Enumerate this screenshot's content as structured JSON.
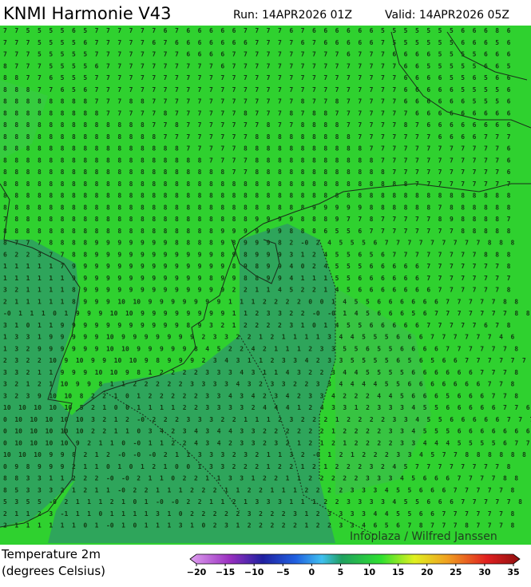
{
  "header": {
    "title": "KNMI Harmonie V43",
    "run": "Run: 14APR2026 01Z",
    "valid": "Valid: 14APR2026 05Z"
  },
  "map": {
    "rows": [
      "7 7 5 5 5 5 6 5 7 7 7 7 7 7 6 7 6 6 6 6 6 7 7 7 7 6 7 6 6 6 6 6 6 5 5 5 5 5 5 5 6 6 6 8 6",
      "7 7 7 5 5 5 5 6 7 7 7 7 7 6 7 6 6 6 6 6 6 6 7 7 7 7 6 7 6 6 6 6 6 7 5 5 5 5 5 5 6 6 6 5 6",
      "7 7 7 5 5 5 5 5 7 7 7 7 7 7 7 7 6 6 6 6 7 7 7 7 7 7 7 7 7 7 6 7 7 7 6 6 6 6 5 5 5 5 6 6 6",
      "8 7 7 7 5 5 5 5 6 7 7 7 7 7 7 7 7 7 7 6 7 7 7 7 7 7 7 7 7 7 7 7 7 7 7 6 6 5 5 5 5 5 6 6 5",
      "8 8 7 7 6 5 5 5 7 7 7 7 7 7 7 7 7 7 7 7 7 7 7 7 7 7 7 7 7 7 7 7 7 7 7 6 6 6 6 5 5 6 5 6 6",
      "8 8 8 7 7 6 5 6 7 7 7 7 7 7 7 7 7 7 7 7 7 7 7 7 7 7 7 7 7 7 7 7 7 7 7 6 6 6 6 6 5 5 5 5 6",
      "8 8 8 8 8 8 8 8 7 7 7 8 8 7 7 7 7 7 7 7 7 7 7 7 7 7 8 7 7 8 7 7 7 7 7 6 6 6 6 6 6 5 5 5 6",
      "8 8 8 8 8 8 8 8 8 7 7 7 7 7 8 7 7 7 7 7 7 8 7 7 7 8 7 8 8 7 7 7 7 7 7 7 6 6 6 6 6 6 6 6 6",
      "8 8 8 8 8 8 8 8 8 8 8 8 8 7 7 8 7 7 7 7 7 7 7 8 7 7 8 8 8 8 7 7 7 7 7 8 7 6 6 6 6 6 6 6 6",
      "8 8 8 8 8 8 8 8 8 8 8 8 8 8 7 7 7 7 7 7 7 7 8 8 8 8 8 8 8 8 8 7 7 7 7 7 7 7 6 6 6 6 7 7 7",
      "8 8 8 8 8 8 8 8 8 8 8 8 8 8 8 8 7 7 7 7 7 8 8 8 8 8 8 8 8 8 8 8 7 7 7 7 7 7 7 7 7 7 7 7 6",
      "8 8 8 8 8 8 8 8 8 8 8 8 8 8 8 8 8 8 7 7 7 7 8 8 8 8 8 8 8 8 8 8 8 7 7 7 7 7 7 7 7 7 7 7 6",
      "8 8 8 8 8 8 8 8 8 8 8 8 8 8 8 8 8 8 8 8 7 7 8 8 8 8 8 8 8 8 8 8 8 8 7 7 7 7 7 7 7 7 7 7 6",
      "8 8 8 8 8 8 8 8 8 8 8 8 8 8 8 8 8 8 8 8 8 8 8 8 8 8 8 8 8 8 8 8 8 8 8 8 7 7 7 7 7 7 7 7 7",
      "8 8 8 8 8 8 8 8 8 8 8 8 8 8 8 8 8 8 8 8 8 8 8 8 8 8 8 8 8 8 8 8 8 8 8 8 8 8 8 8 8 8 8 8 8",
      "8 8 8 8 8 8 8 8 8 8 8 8 8 8 8 8 8 8 8 8 8 8 8 8 8 8 8 9 9 9 9 9 8 8 8 8 8 8 7 8 8 8 8 8 8",
      "7 8 8 8 8 8 8 8 8 8 8 8 8 8 8 8 8 8 8 8 8 8 9 9 9 9 8 8 8 9 7 7 8 7 7 7 7 7 8 9 8 8 8 8 7",
      "8 8 8 8 8 8 8 8 8 8 8 8 8 8 8 8 8 8 8 9 9 9 9 9 9 8 8 8 6 5 5 6 7 7 7 7 7 7 7 7 8 8 8 8 8",
      "8 7 7 7 8 8 8 8 9 9 9 9 9 9 9 8 8 8 8 9 8 9 9 9 8 2 -0 2 4 5 5 5 6 7 7 7 7 7 7 7 7 7 8 8 8",
      "6 2 2 3 7 7 8 8 9 9 9 9 9 9 9 9 9 9 9 8 9 8 9 9 9 3 1 2 4 5 5 6 5 6 7 7 7 7 7 7 7 7 8 8 8",
      "1 1 1 1 1 7 9 9 9 9 9 9 9 9 9 9 9 9 9 9 8 9 8 9 9 4 0 2 4 5 5 5 6 6 6 6 6 7 7 7 7 7 7 7 8",
      "1 1 1 1 1 1 9 9 9 9 9 9 9 9 9 9 9 9 8 9 9 8 8 9 9 4 1 1 1 5 5 6 6 6 6 6 6 7 7 7 7 7 7 7 7",
      "3 2 1 1 1 1 8 9 9 9 9 9 9 9 9 9 9 9 9 9 2 2 1 1 4 5 2 2 1 4 5 6 6 6 6 6 6 6 7 7 7 7 7 7 8",
      "2 1 1 1 1 1 8 9 9 9 10 10 9 9 9 9 9 9 9 1 1 1 2 2 2 2 0 0 1 4 5 5 6 6 6 6 6 6 7 7 7 7 7 8 8",
      "-0 1 1 1 0 1 9 9 9 10 10 9 9 9 9 9 9 9 9 1 1 2 3 3 2 2 -0 -0 1 4 5 6 6 6 5 6 7 7 7 7 7 7 7 8 8",
      "3 1 0 1 1 9 9 9 9 9 9 9 9 9 9 9 8 9 3 2 1 2 2 2 2 3 1 0 1 4 5 5 6 6 6 6 6 7 7 7 7 7 6 7 8",
      "1 3 3 1 9 9 9 9 9 10 9 9 9 9 9 9 9 2 3 3 2 2 1 2 1 1 1 1 3 4 4 5 5 5 6 6 6 7 7 7 7 7 7 4 6",
      "1 3 2 9 9 9 9 9 9 10 10 9 9 9 9 9 8 4 5 2 2 4 2 1 1 1 2 3 3 5 5 6 5 5 6 6 6 6 7 7 7 7 7 7 8",
      "2 3 2 2 10 9 10 9 9 10 10 9 8 9 9 9 2 3 4 3 1 1 2 3 3 4 2 3 3 5 5 5 5 6 5 6 5 6 6 7 7 7 7 7 7",
      "3 3 2 1 1 9 9 9 10 10 9 8 1 2 2 2 2 3 3 3 4 3 1 1 4 3 2 2 3 4 4 5 5 5 5 6 6 6 6 6 6 7 7 7 8",
      "3 2 1 2 1 10 9 9 8 1 1 2 2 2 2 2 3 3 3 3 4 3 2 3 3 2 2 3 3 4 4 4 4 5 5 6 6 6 6 6 6 6 7 7 8",
      "3 2 3 9 10 10 8 2 2 1 0 1 2 2 2 2 2 3 3 4 3 4 2 3 4 2 3 3 4 2 2 2 4 4 5 6 6 6 5 6 6 6 7 7 8",
      "10 10 10 10 10 5 2 1 0 0 1 1 1 1 2 2 3 3 3 3 2 4 4 4 1 2 4 3 3 1 2 3 3 3 4 5 5 6 6 6 6 6 7 7 6",
      "0 10 10 10 10 10 3 2 1 2 -0 2 2 2 3 3 3 2 2 1 1 1 2 3 2 2 2 1 2 2 2 2 3 3 4 5 5 6 6 6 6 6 7 7 7",
      "0 10 10 10 10 10 2 2 1 1 0 3 4 2 3 4 3 4 4 3 3 2 2 2 2 2 2 1 2 2 2 2 3 3 4 5 5 5 6 6 6 6 6 6 6",
      "0 10 10 10 10 9 2 1 1 0 -0 1 1 2 2 4 3 4 2 3 3 2 3 2 1 2 1 2 1 2 2 2 2 3 3 4 4 4 5 5 5 5 6 7 7",
      "10 10 10 9 9 8 2 1 2 -0 -0 -0 2 1 1 3 3 3 2 3 2 1 1 3 2 -0 1 2 1 2 2 2 3 3 4 5 7 7 8 8 8 8 8 8 8",
      "0 9 8 9 9 9 2 1 1 0 1 0 1 2 1 0 0 1 3 3 2 2 2 1 2 2 1 2 1 2 2 2 3 2 4 5 7 7 7 7 7 7 7 7 8",
      "8 8 3 3 1 1 2 2 2 -0 -0 2 1 1 0 2 2 1 1 3 3 1 2 2 1 1 2 2 2 2 2 3 3 3 4 5 6 6 6 7 7 7 7 8 8",
      "8 5 3 3 3 2 1 2 1 1 -0 2 2 1 1 1 2 2 2 1 1 2 2 1 1 1 2 2 2 2 3 3 3 4 5 5 6 6 6 7 7 7 7 7 8",
      "5 3 5 5 -0 2 1 1 1 2 1 0 1 -0 -0 2 2 1 1 2 1 3 3 3 1 1 1 2 2 3 3 3 3 4 5 5 6 6 6 7 7 7 7 7 8",
      "2 1 1 2 3 -1 1 1 0 1 1 1 1 3 1 0 2 2 2 2 2 3 2 2 2 3 1 2 3 3 3 3 4 4 5 5 6 6 7 7 7 7 7 7 8",
      "2 1 1 1 1 1 1 0 1 -0 1 0 1 1 1 3 1 0 2 3 1 2 2 2 2 2 1 2 2 3 3 4 6 5 6 7 8 7 7 7 8 7 7 7 8"
    ],
    "credit": "Infoplaza / Wilfred Janssen"
  },
  "legend": {
    "title": "Temperature 2m",
    "units": "(degrees Celsius)",
    "ticks": [
      {
        "value": -20,
        "label": "−20"
      },
      {
        "value": -15,
        "label": "−15"
      },
      {
        "value": -10,
        "label": "−10"
      },
      {
        "value": -5,
        "label": "−5"
      },
      0,
      5,
      10,
      15,
      20,
      25,
      30,
      35
    ]
  }
}
